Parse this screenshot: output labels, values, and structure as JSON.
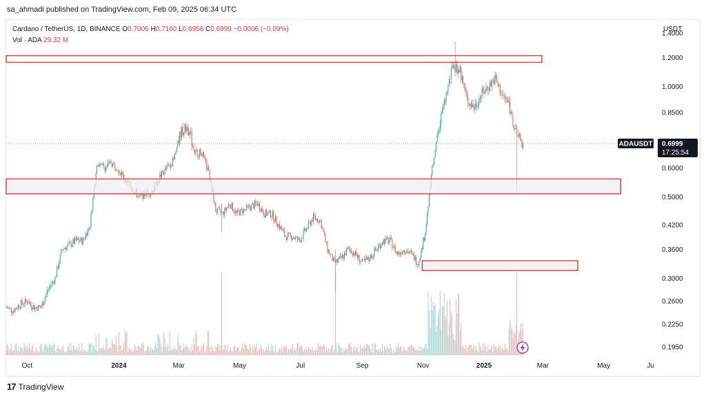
{
  "header": {
    "published": "sa_ahmadi published on TradingView.com, Feb 09, 2025 06:34 UTC"
  },
  "legend": {
    "symbol": "Cardano / TetherUS, 1D, BINANCE",
    "o_label": "O",
    "o_val": "0.7006",
    "h_label": "H",
    "h_val": "0.7160",
    "l_label": "L",
    "l_val": "0.6958",
    "c_label": "C",
    "c_val": "0.6999",
    "change": "−0.0006 (−0.09%)",
    "vol_label": "Vol · ADA",
    "vol_val": "29.32 M"
  },
  "currency": "USDT",
  "price_tag": {
    "symbol": "ADAUSDT",
    "price": "0.6999",
    "countdown": "17:25:54"
  },
  "footer": {
    "logo": "17",
    "brand": "TradingView"
  },
  "colors": {
    "up": "#26a69a",
    "down": "#ef5350",
    "zone_border": "#e53935",
    "zone_fill": "#eeeef3",
    "tag_dark": "#131722"
  },
  "chart_data": {
    "type": "candlestick",
    "symbol": "ADAUSDT",
    "interval": "1D",
    "y_scale": "log",
    "ylim": [
      0.185,
      1.52
    ],
    "y_ticks": [
      "1.4000",
      "1.2000",
      "1.0000",
      "0.8500",
      "0.6000",
      "0.5000",
      "0.4200",
      "0.3600",
      "0.3000",
      "0.2600",
      "0.2250",
      "0.1950"
    ],
    "x_ticks": [
      "Oct",
      "2024",
      "Mar",
      "May",
      "Jul",
      "Sep",
      "Nov",
      "2025",
      "Mar",
      "May",
      "Ju"
    ],
    "x_range": [
      "2023-09-10",
      "2025-06-20"
    ],
    "last_date": "2025-02-09",
    "last_price": 0.6999,
    "closes_weekly": [
      [
        "2023-09-10",
        0.25
      ],
      [
        "2023-09-17",
        0.245
      ],
      [
        "2023-09-24",
        0.255
      ],
      [
        "2023-10-01",
        0.26
      ],
      [
        "2023-10-08",
        0.25
      ],
      [
        "2023-10-15",
        0.25
      ],
      [
        "2023-10-22",
        0.28
      ],
      [
        "2023-10-29",
        0.3
      ],
      [
        "2023-11-05",
        0.36
      ],
      [
        "2023-11-12",
        0.37
      ],
      [
        "2023-11-19",
        0.38
      ],
      [
        "2023-11-26",
        0.38
      ],
      [
        "2023-12-03",
        0.42
      ],
      [
        "2023-12-10",
        0.62
      ],
      [
        "2023-12-17",
        0.6
      ],
      [
        "2023-12-24",
        0.62
      ],
      [
        "2023-12-31",
        0.6
      ],
      [
        "2024-01-07",
        0.56
      ],
      [
        "2024-01-14",
        0.53
      ],
      [
        "2024-01-21",
        0.5
      ],
      [
        "2024-01-28",
        0.51
      ],
      [
        "2024-02-04",
        0.52
      ],
      [
        "2024-02-11",
        0.57
      ],
      [
        "2024-02-18",
        0.6
      ],
      [
        "2024-02-25",
        0.63
      ],
      [
        "2024-03-03",
        0.75
      ],
      [
        "2024-03-10",
        0.78
      ],
      [
        "2024-03-17",
        0.66
      ],
      [
        "2024-03-24",
        0.66
      ],
      [
        "2024-03-31",
        0.58
      ],
      [
        "2024-04-07",
        0.46
      ],
      [
        "2024-04-14",
        0.45
      ],
      [
        "2024-04-21",
        0.48
      ],
      [
        "2024-04-28",
        0.45
      ],
      [
        "2024-05-05",
        0.46
      ],
      [
        "2024-05-12",
        0.47
      ],
      [
        "2024-05-19",
        0.48
      ],
      [
        "2024-05-26",
        0.45
      ],
      [
        "2024-06-02",
        0.45
      ],
      [
        "2024-06-09",
        0.42
      ],
      [
        "2024-06-16",
        0.39
      ],
      [
        "2024-06-23",
        0.39
      ],
      [
        "2024-06-30",
        0.38
      ],
      [
        "2024-07-07",
        0.41
      ],
      [
        "2024-07-14",
        0.44
      ],
      [
        "2024-07-21",
        0.43
      ],
      [
        "2024-07-28",
        0.36
      ],
      [
        "2024-08-04",
        0.33
      ],
      [
        "2024-08-11",
        0.34
      ],
      [
        "2024-08-18",
        0.36
      ],
      [
        "2024-08-25",
        0.35
      ],
      [
        "2024-09-01",
        0.33
      ],
      [
        "2024-09-08",
        0.34
      ],
      [
        "2024-09-15",
        0.36
      ],
      [
        "2024-09-22",
        0.38
      ],
      [
        "2024-09-29",
        0.38
      ],
      [
        "2024-10-06",
        0.35
      ],
      [
        "2024-10-13",
        0.36
      ],
      [
        "2024-10-20",
        0.35
      ],
      [
        "2024-10-27",
        0.33
      ],
      [
        "2024-11-03",
        0.4
      ],
      [
        "2024-11-10",
        0.6
      ],
      [
        "2024-11-17",
        0.78
      ],
      [
        "2024-11-24",
        0.95
      ],
      [
        "2024-12-01",
        1.15
      ],
      [
        "2024-12-08",
        1.1
      ],
      [
        "2024-12-15",
        0.92
      ],
      [
        "2024-12-22",
        0.88
      ],
      [
        "2024-12-29",
        0.95
      ],
      [
        "2025-01-05",
        1.0
      ],
      [
        "2025-01-12",
        1.05
      ],
      [
        "2025-01-19",
        0.95
      ],
      [
        "2025-01-26",
        0.9
      ],
      [
        "2025-02-02",
        0.74
      ],
      [
        "2025-02-09",
        0.6999
      ]
    ],
    "spikes": [
      [
        "2024-12-03",
        1.33,
        1.1
      ],
      [
        "2025-02-03",
        0.74,
        0.51
      ],
      [
        "2024-04-13",
        0.48,
        0.4
      ],
      [
        "2024-08-05",
        0.36,
        0.275
      ]
    ],
    "zones": [
      {
        "from": "2023-09-10",
        "to": "2025-02-28",
        "low": 1.165,
        "high": 1.215,
        "filled": false
      },
      {
        "from": "2023-09-10",
        "to": "2025-05-18",
        "low": 0.51,
        "high": 0.56,
        "filled": true
      },
      {
        "from": "2024-10-31",
        "to": "2025-04-05",
        "low": 0.315,
        "high": 0.335,
        "filled": true
      }
    ]
  }
}
